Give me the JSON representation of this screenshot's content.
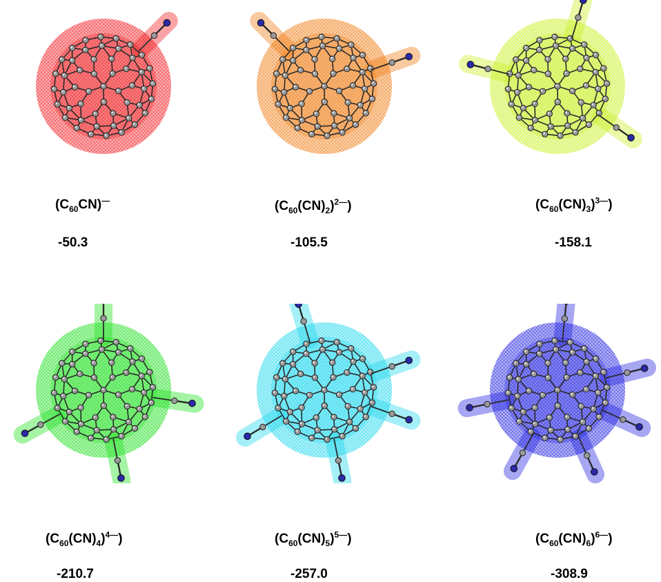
{
  "panels": [
    {
      "formula": {
        "prefix": "(C",
        "n": "60",
        "mid": "CN)",
        "count": "",
        "close": "",
        "charge": "—",
        "end": ""
      },
      "value": "-50.3",
      "color": "#f0181c",
      "arms": [
        [
          1,
          -1
        ]
      ]
    },
    {
      "formula": {
        "prefix": "(C",
        "n": "60",
        "mid": "(CN)",
        "count": "2",
        "close": "",
        "charge": "2—",
        "end": ")"
      },
      "value": "-105.5",
      "color": "#f07a10",
      "arms": [
        [
          -1,
          -1
        ],
        [
          1,
          -0.35
        ]
      ]
    },
    {
      "formula": {
        "prefix": "(C",
        "n": "60",
        "mid": "(CN)",
        "count": "3",
        "close": "",
        "charge": "3—",
        "end": ")"
      },
      "value": "-158.1",
      "color": "#c8f020",
      "arms": [
        [
          -1,
          -0.25
        ],
        [
          0.3,
          -1
        ],
        [
          1,
          0.7
        ]
      ]
    },
    {
      "formula": {
        "prefix": "(C",
        "n": "60",
        "mid": "(CN)",
        "count": "4",
        "close": "",
        "charge": "4—",
        "end": ")"
      },
      "value": "-210.7",
      "color": "#1ee01e",
      "arms": [
        [
          0,
          -1
        ],
        [
          1,
          0.15
        ],
        [
          -1,
          0.55
        ],
        [
          0.2,
          1
        ]
      ]
    },
    {
      "formula": {
        "prefix": "(C",
        "n": "60",
        "mid": "(CN)",
        "count": "5",
        "close": "",
        "charge": "5—",
        "end": ")"
      },
      "value": "-257.0",
      "color": "#1ed8ee",
      "arms": [
        [
          -0.3,
          -1
        ],
        [
          1,
          -0.35
        ],
        [
          1,
          0.35
        ],
        [
          -1,
          0.6
        ],
        [
          0.2,
          1
        ]
      ]
    },
    {
      "formula": {
        "prefix": "(C",
        "n": "60",
        "mid": "(CN)",
        "count": "6",
        "close": "",
        "charge": "6—",
        "end": ")"
      },
      "value": "-308.9",
      "color": "#2020e0",
      "arms": [
        [
          0.1,
          -1
        ],
        [
          1,
          -0.25
        ],
        [
          1,
          0.45
        ],
        [
          -1,
          0.2
        ],
        [
          0.45,
          1
        ],
        [
          -0.5,
          0.9
        ]
      ]
    }
  ]
}
